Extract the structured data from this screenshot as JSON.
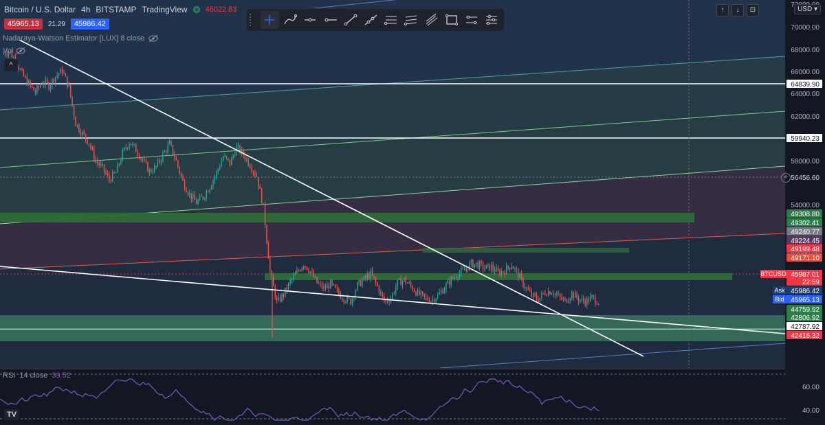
{
  "header": {
    "symbol": "Bitcoin / U.S. Dollar",
    "interval": "4h",
    "exchange": "BITSTAMP",
    "platform": "TradingView",
    "ohlc": "46022.83"
  },
  "quote": {
    "sell": "45965.13",
    "spread": "21.29",
    "buy": "45986.42"
  },
  "indicators": {
    "nadaraya": "Nadaraya-Watson Estimator [LUX] 8 close",
    "vol": "Vol"
  },
  "toolbar": {
    "tools": [
      "cross-tool",
      "brush-tool",
      "horizontal-ray-tool",
      "horizontal-line-tool",
      "trend-line-tool",
      "ray-tool",
      "pitchfork-tool",
      "parallel-channel-tool",
      "fib-tool",
      "rectangle-tool",
      "range-tool",
      "settings-tool"
    ]
  },
  "scale_buttons": {
    "up": "↑",
    "down": "↓",
    "cam": "⊡"
  },
  "currency": "USD",
  "price_scale": {
    "ticks": [
      "72000.00",
      "70000.00",
      "68000.00",
      "66000.00",
      "64000.00",
      "62000.00",
      "58000.00",
      "54000.00",
      "48000.00",
      "40.00",
      "60.00"
    ],
    "labels": [
      {
        "text": "64839.90",
        "bg": "#ffffff",
        "fg": "#131722"
      },
      {
        "text": "59940.23",
        "bg": "#ffffff",
        "fg": "#131722"
      },
      {
        "text": "56456.60",
        "bg": "none",
        "fg": "#d1d4dc"
      },
      {
        "text": "49308.80",
        "bg": "#2e7d4a",
        "fg": "#ffffff"
      },
      {
        "text": "49302.41",
        "bg": "#2e7d4a",
        "fg": "#ffffff"
      },
      {
        "text": "49240.77",
        "bg": "#787b86",
        "fg": "#ffffff"
      },
      {
        "text": "49224.45",
        "bg": "#5a3a5c",
        "fg": "#ffffff"
      },
      {
        "text": "49199.48",
        "bg": "#f23645",
        "fg": "#ffffff"
      },
      {
        "text": "49171.10",
        "bg": "#e84e3a",
        "fg": "#ffffff"
      },
      {
        "text": "45987.01",
        "bg": "#f23645",
        "fg": "#ffffff"
      },
      {
        "text": "22:59",
        "bg": "#f23645",
        "fg": "#ffffff"
      },
      {
        "text": "45986.42",
        "bg": "#1e3a6e",
        "fg": "#ffffff"
      },
      {
        "text": "45965.13",
        "bg": "#2962ff",
        "fg": "#ffffff"
      },
      {
        "text": "44759.92",
        "bg": "#2e7d4a",
        "fg": "#ffffff"
      },
      {
        "text": "42806.92",
        "bg": "#2e7d4a",
        "fg": "#ffffff"
      },
      {
        "text": "42787.92",
        "bg": "#ffffff",
        "fg": "#131722"
      },
      {
        "text": "42416.32",
        "bg": "#f23645",
        "fg": "#ffffff"
      }
    ],
    "tags": [
      {
        "text": "BTCUSD",
        "bg": "#f23645"
      },
      {
        "text": "Ask",
        "bg": "#1e3a6e"
      },
      {
        "text": "Bid",
        "bg": "#2962ff"
      }
    ]
  },
  "rsi": {
    "name": "RSI",
    "params": "14 close",
    "value": "39.52"
  },
  "logo": "TV",
  "colors": {
    "bull": "#26a69a",
    "bear": "#ef5350",
    "rsi": "#7e57c2"
  },
  "chart_data": {
    "type": "candlestick",
    "title": "Bitcoin / U.S. Dollar",
    "interval": "4h",
    "ylim": [
      41000,
      72000
    ],
    "horizontal_levels": [
      64839.9,
      59940.23,
      42787.92
    ],
    "zones": [
      [
        49308.8,
        49900
      ],
      [
        45800,
        46100
      ],
      [
        44759.92,
        44300
      ],
      [
        42806.92,
        42500
      ]
    ],
    "close_path": [
      67500,
      67800,
      67000,
      65800,
      64900,
      64200,
      65100,
      64800,
      65600,
      66100,
      64600,
      61500,
      60600,
      59800,
      58200,
      57600,
      56600,
      57200,
      58900,
      59900,
      59200,
      58300,
      57300,
      57700,
      58800,
      59700,
      58200,
      56400,
      55300,
      54600,
      55100,
      56000,
      57200,
      58600,
      58000,
      59400,
      58800,
      57900,
      56900,
      54200,
      48600,
      45900,
      46600,
      47700,
      48500,
      49300,
      48600,
      47600,
      47100,
      47500,
      46800,
      46300,
      46000,
      47400,
      47900,
      48400,
      47300,
      46000,
      46300,
      47600,
      47900,
      47300,
      46700,
      46300,
      46100,
      46500,
      47200,
      47900,
      48400,
      48700,
      49300,
      49200,
      48900,
      49000,
      48500,
      48700,
      49200,
      48300,
      47300,
      46500,
      46200,
      46800,
      46900,
      46400,
      46000,
      46700,
      46200,
      46000,
      46300,
      45987
    ]
  }
}
